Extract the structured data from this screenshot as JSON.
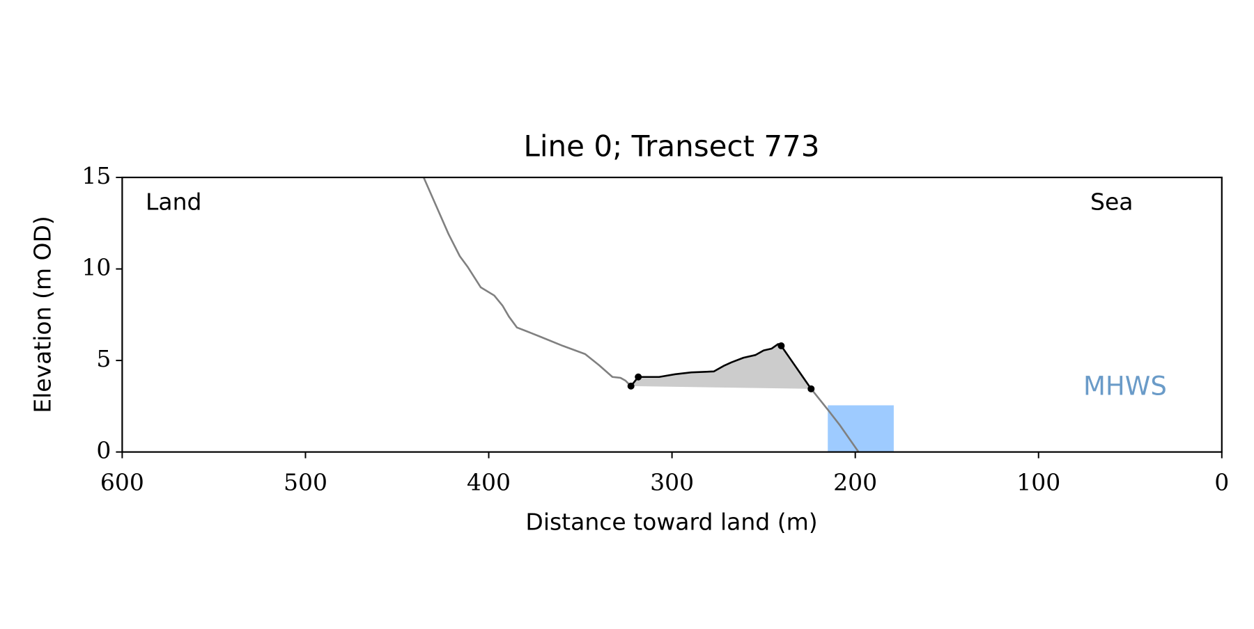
{
  "chart_data": {
    "type": "line",
    "title": "Line 0; Transect 773",
    "xlabel": "Distance toward land (m)",
    "ylabel": "Elevation (m OD)",
    "xlim": [
      600,
      0
    ],
    "ylim": [
      0,
      15
    ],
    "xticks": [
      600,
      500,
      400,
      300,
      200,
      100,
      0
    ],
    "yticks": [
      0,
      5,
      10,
      15
    ],
    "annotations": [
      "Land",
      "Sea"
    ],
    "mhws": {
      "label": "MHWS",
      "level": 2.55,
      "x": [
        215,
        179
      ],
      "color": "#9ecbff",
      "label_color": "#6a9bc8"
    },
    "series": [
      {
        "color": "#808080",
        "x": [
          435.5,
          427.6,
          421.9,
          415.8,
          411.4,
          404.4,
          397.0,
          392.5,
          389.0,
          384.6,
          379.4,
          371.9,
          359.6,
          347.4,
          339.9,
          332.5,
          328.1,
          325.4,
          322.4,
          null,
          224.1,
          214.9,
          208.3,
          198.2
        ],
        "y": [
          15,
          13.2,
          11.9,
          10.7,
          10.1,
          9.0,
          8.55,
          8.0,
          7.4,
          6.8,
          6.6,
          6.3,
          5.8,
          5.35,
          4.75,
          4.1,
          4.05,
          3.9,
          3.6,
          null,
          3.45,
          2.3,
          1.45,
          0
        ]
      },
      {
        "color": "#000000",
        "fill": "#cccccc",
        "x": [
          322.4,
          318.4,
          313.6,
          307.0,
          298.2,
          289.5,
          277.2,
          271.9,
          267.5,
          261.0,
          254.4,
          250.0,
          245.6,
          242.1,
          240.4,
          224.1
        ],
        "y": [
          3.6,
          4.1,
          4.1,
          4.1,
          4.25,
          4.35,
          4.4,
          4.7,
          4.9,
          5.15,
          5.3,
          5.55,
          5.65,
          5.9,
          5.8,
          3.45
        ]
      },
      {
        "color": "#000000",
        "mode": "markers",
        "x": [
          322.4,
          318.4,
          240.4,
          224.1
        ],
        "y": [
          3.6,
          4.1,
          5.8,
          3.45
        ]
      }
    ]
  }
}
